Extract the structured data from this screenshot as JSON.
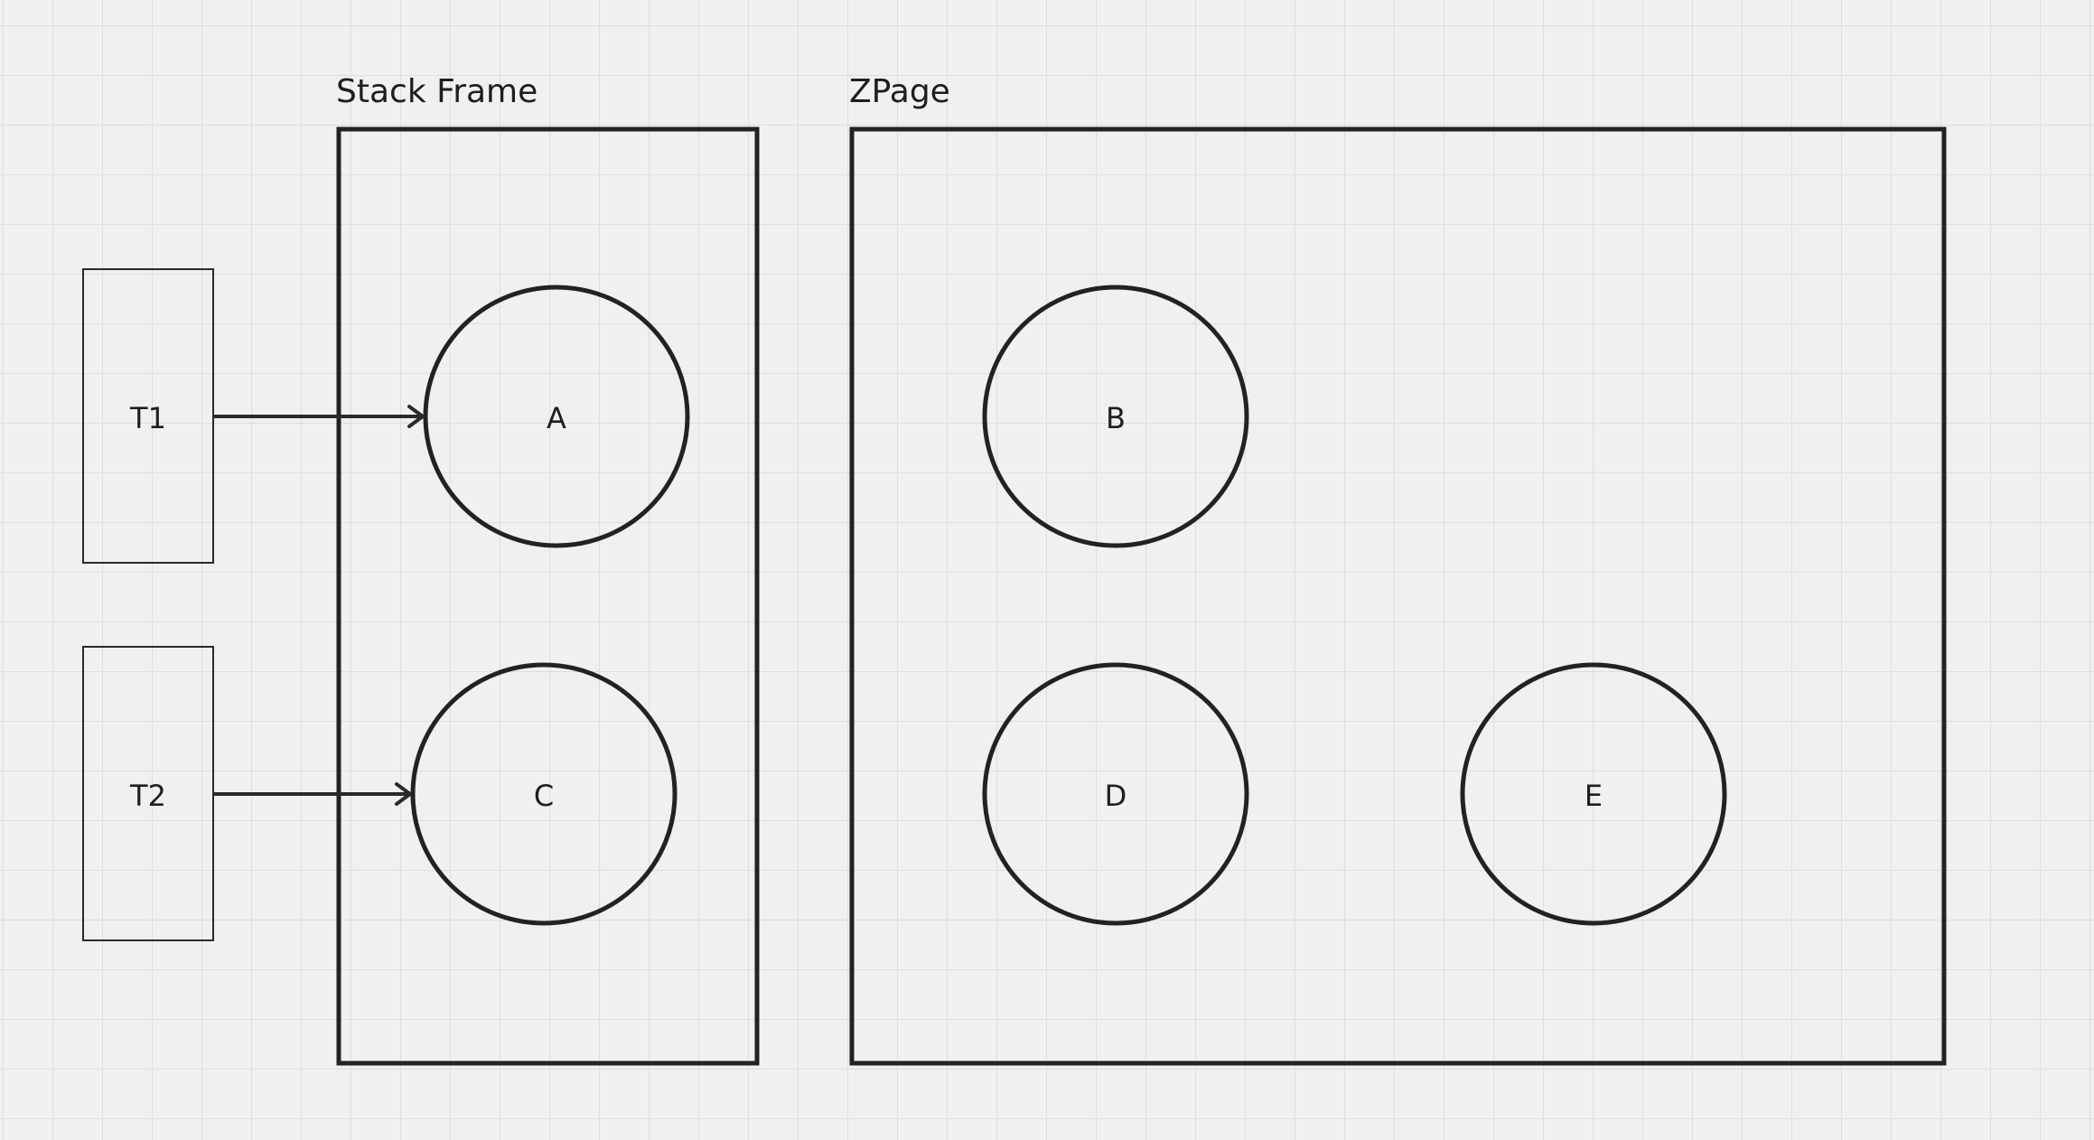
{
  "frames": {
    "stack": {
      "title": "Stack Frame"
    },
    "zpage": {
      "title": "ZPage"
    }
  },
  "threads": [
    {
      "label": "T1"
    },
    {
      "label": "T2"
    }
  ],
  "objects": [
    {
      "label": "A"
    },
    {
      "label": "C"
    },
    {
      "label": "B"
    },
    {
      "label": "D"
    },
    {
      "label": "E"
    }
  ],
  "references": [
    {
      "from": "T1",
      "to": "A"
    },
    {
      "from": "T2",
      "to": "C"
    }
  ]
}
